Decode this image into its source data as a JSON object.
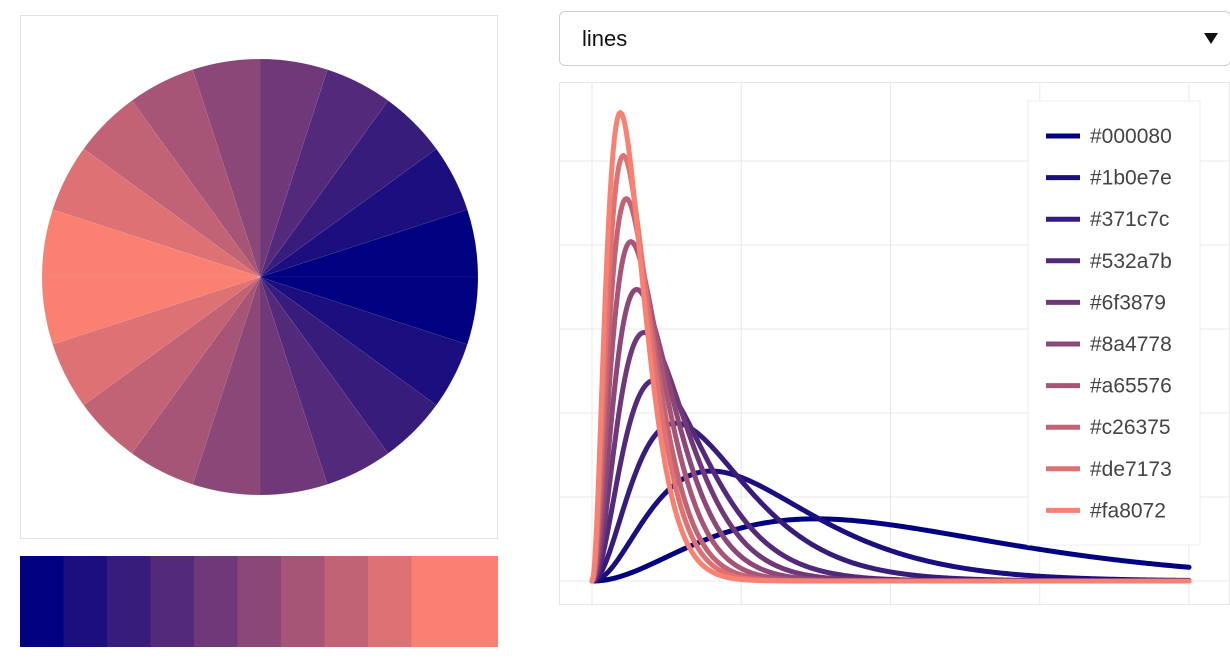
{
  "select": {
    "value": "lines",
    "arrow_icon": "caret-down-icon"
  },
  "palette": [
    "#000080",
    "#1b0e7e",
    "#371c7c",
    "#532a7b",
    "#6f3879",
    "#8a4778",
    "#a65576",
    "#c26375",
    "#de7173",
    "#fa8072"
  ],
  "swatch_strip": {
    "colors": [
      "#000080",
      "#1b0e7e",
      "#371c7c",
      "#532a7b",
      "#6f3879",
      "#8a4778",
      "#a65576",
      "#c26375",
      "#de7173",
      "#fa8072"
    ]
  },
  "chart_data": [
    {
      "type": "pie",
      "slices": [
        {
          "value": 1,
          "color": "#000080"
        },
        {
          "value": 1,
          "color": "#1b0e7e"
        },
        {
          "value": 1,
          "color": "#371c7c"
        },
        {
          "value": 1,
          "color": "#532a7b"
        },
        {
          "value": 1,
          "color": "#6f3879"
        },
        {
          "value": 1,
          "color": "#8a4778"
        },
        {
          "value": 1,
          "color": "#a65576"
        },
        {
          "value": 1,
          "color": "#c26375"
        },
        {
          "value": 1,
          "color": "#de7173"
        },
        {
          "value": 1,
          "color": "#fa8072"
        },
        {
          "value": 1,
          "color": "#fa8072"
        },
        {
          "value": 1,
          "color": "#de7173"
        },
        {
          "value": 1,
          "color": "#c26375"
        },
        {
          "value": 1,
          "color": "#a65576"
        },
        {
          "value": 1,
          "color": "#8a4778"
        },
        {
          "value": 1,
          "color": "#6f3879"
        },
        {
          "value": 1,
          "color": "#532a7b"
        },
        {
          "value": 1,
          "color": "#371c7c"
        },
        {
          "value": 1,
          "color": "#1b0e7e"
        },
        {
          "value": 1,
          "color": "#000080"
        }
      ]
    },
    {
      "type": "line",
      "title": "",
      "xlabel": "",
      "ylabel": "",
      "grid": true,
      "legend_position": "top-right",
      "xlim": [
        0,
        20
      ],
      "ylim": [
        0,
        1
      ],
      "x_ticks": [
        0,
        5,
        10,
        15,
        20
      ],
      "y_ticks": [
        0,
        0.175,
        0.35,
        0.525,
        0.7,
        0.875
      ],
      "series": [
        {
          "name": "#000080",
          "color": "#000080",
          "peak_x": 7.5,
          "peak_y": 0.13
        },
        {
          "name": "#1b0e7e",
          "color": "#1b0e7e",
          "peak_x": 4.0,
          "peak_y": 0.23
        },
        {
          "name": "#371c7c",
          "color": "#371c7c",
          "peak_x": 2.8,
          "peak_y": 0.33
        },
        {
          "name": "#532a7b",
          "color": "#532a7b",
          "peak_x": 2.1,
          "peak_y": 0.42
        },
        {
          "name": "#6f3879",
          "color": "#6f3879",
          "peak_x": 1.75,
          "peak_y": 0.52
        },
        {
          "name": "#8a4778",
          "color": "#8a4778",
          "peak_x": 1.5,
          "peak_y": 0.61
        },
        {
          "name": "#a65576",
          "color": "#a65576",
          "peak_x": 1.3,
          "peak_y": 0.71
        },
        {
          "name": "#c26375",
          "color": "#c26375",
          "peak_x": 1.15,
          "peak_y": 0.8
        },
        {
          "name": "#de7173",
          "color": "#de7173",
          "peak_x": 1.05,
          "peak_y": 0.89
        },
        {
          "name": "#fa8072",
          "color": "#fa8072",
          "peak_x": 0.95,
          "peak_y": 0.98
        }
      ]
    }
  ]
}
